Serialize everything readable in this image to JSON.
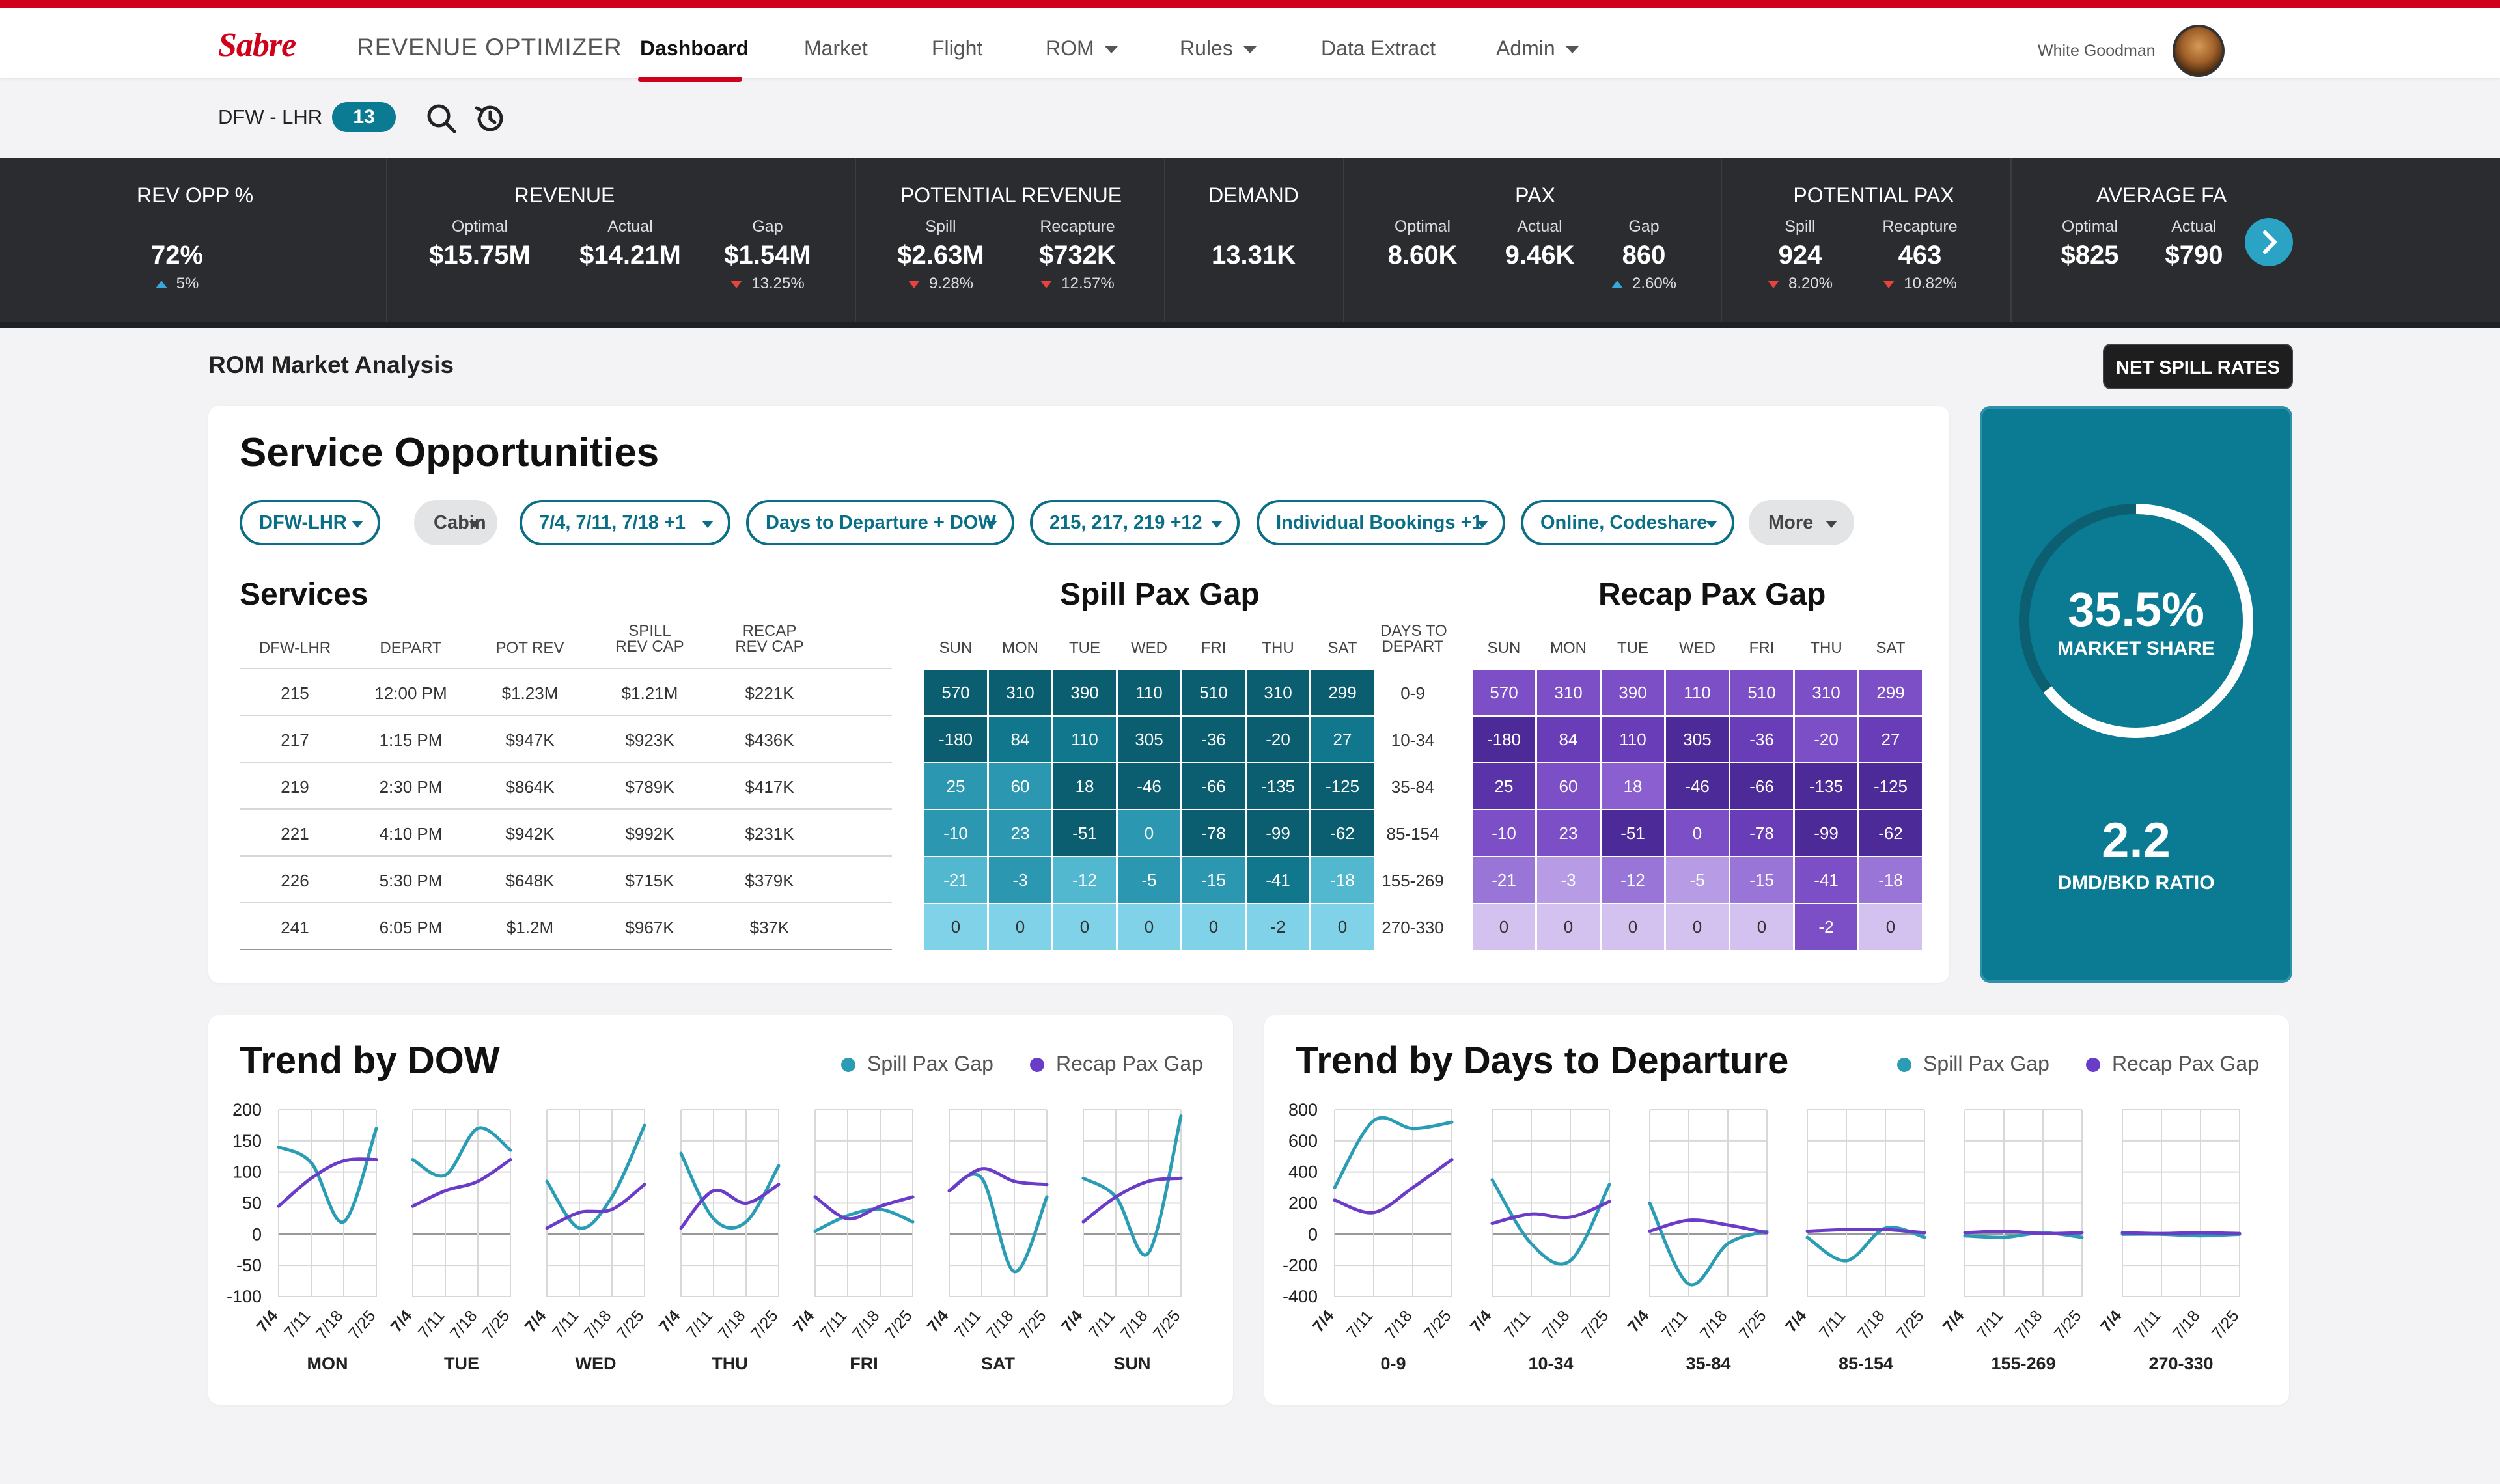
{
  "header": {
    "logo": "Sabre",
    "app_name": "REVENUE OPTIMIZER",
    "nav": [
      {
        "label": "Dashboard",
        "active": true,
        "dropdown": false
      },
      {
        "label": "Market",
        "dropdown": false
      },
      {
        "label": "Flight",
        "dropdown": false
      },
      {
        "label": "ROM",
        "dropdown": true
      },
      {
        "label": "Rules",
        "dropdown": true
      },
      {
        "label": "Data Extract",
        "dropdown": false
      },
      {
        "label": "Admin",
        "dropdown": true
      }
    ],
    "user_name": "White Goodman"
  },
  "subbar": {
    "route": "DFW - LHR",
    "count": "13",
    "icons": [
      "search-icon",
      "history-icon"
    ]
  },
  "kpis": [
    {
      "title": "REV OPP %",
      "items": [
        {
          "sub": "",
          "value": "72%",
          "delta": "5%",
          "dir": "up"
        }
      ]
    },
    {
      "title": "REVENUE",
      "items": [
        {
          "sub": "Optimal",
          "value": "$15.75M",
          "delta": "",
          "dir": ""
        },
        {
          "sub": "Actual",
          "value": "$14.21M",
          "delta": "",
          "dir": ""
        },
        {
          "sub": "Gap",
          "value": "$1.54M",
          "delta": "13.25%",
          "dir": "down"
        }
      ]
    },
    {
      "title": "POTENTIAL REVENUE",
      "items": [
        {
          "sub": "Spill",
          "value": "$2.63M",
          "delta": "9.28%",
          "dir": "down"
        },
        {
          "sub": "Recapture",
          "value": "$732K",
          "delta": "12.57%",
          "dir": "down"
        }
      ]
    },
    {
      "title": "DEMAND",
      "items": [
        {
          "sub": "",
          "value": "13.31K",
          "delta": "",
          "dir": ""
        }
      ]
    },
    {
      "title": "PAX",
      "items": [
        {
          "sub": "Optimal",
          "value": "8.60K",
          "delta": "",
          "dir": ""
        },
        {
          "sub": "Actual",
          "value": "9.46K",
          "delta": "",
          "dir": ""
        },
        {
          "sub": "Gap",
          "value": "860",
          "delta": "2.60%",
          "dir": "up"
        }
      ]
    },
    {
      "title": "POTENTIAL PAX",
      "items": [
        {
          "sub": "Spill",
          "value": "924",
          "delta": "8.20%",
          "dir": "down"
        },
        {
          "sub": "Recapture",
          "value": "463",
          "delta": "10.82%",
          "dir": "down"
        }
      ]
    },
    {
      "title": "AVERAGE FA",
      "items": [
        {
          "sub": "Optimal",
          "value": "$825",
          "delta": "",
          "dir": ""
        },
        {
          "sub": "Actual",
          "value": "$790",
          "delta": "",
          "dir": ""
        }
      ]
    }
  ],
  "section_title": "ROM Market Analysis",
  "net_spill_button": "NET SPILL RATES",
  "service": {
    "title": "Service Opportunities",
    "filters": [
      {
        "label": "DFW-LHR",
        "style": "outline"
      },
      {
        "label": "Cabin",
        "style": "grey"
      },
      {
        "label": "7/4, 7/11, 7/18 +1",
        "style": "outline"
      },
      {
        "label": "Days to Departure + DOW",
        "style": "outline"
      },
      {
        "label": "215, 217, 219 +12",
        "style": "outline"
      },
      {
        "label": "Individual Bookings +1",
        "style": "outline"
      },
      {
        "label": "Online, Codeshare",
        "style": "outline"
      },
      {
        "label": "More",
        "style": "grey"
      }
    ],
    "services_title": "Services",
    "services_headers": [
      "DFW-LHR",
      "DEPART",
      "POT REV",
      "SPILL\nREV CAP",
      "RECAP\nREV CAP"
    ],
    "services_rows": [
      [
        "215",
        "12:00 PM",
        "$1.23M",
        "$1.21M",
        "$221K"
      ],
      [
        "217",
        "1:15 PM",
        "$947K",
        "$923K",
        "$436K"
      ],
      [
        "219",
        "2:30 PM",
        "$864K",
        "$789K",
        "$417K"
      ],
      [
        "221",
        "4:10 PM",
        "$942K",
        "$992K",
        "$231K"
      ],
      [
        "226",
        "5:30 PM",
        "$648K",
        "$715K",
        "$379K"
      ],
      [
        "241",
        "6:05 PM",
        "$1.2M",
        "$967K",
        "$37K"
      ]
    ],
    "spill_title": "Spill Pax Gap",
    "recap_title": "Recap Pax Gap",
    "dow_headers": [
      "SUN",
      "MON",
      "TUE",
      "WED",
      "FRI",
      "THU",
      "SAT"
    ],
    "dtd_header": "DAYS TO\nDEPART",
    "dtd_labels": [
      "0-9",
      "10-34",
      "35-84",
      "85-154",
      "155-269",
      "270-330"
    ],
    "spill_grid": [
      [
        "570",
        "310",
        "390",
        "110",
        "510",
        "310",
        "299"
      ],
      [
        "-180",
        "84",
        "110",
        "305",
        "-36",
        "-20",
        "27"
      ],
      [
        "25",
        "60",
        "18",
        "-46",
        "-66",
        "-135",
        "-125"
      ],
      [
        "-10",
        "23",
        "-51",
        "0",
        "-78",
        "-99",
        "-62"
      ],
      [
        "-21",
        "-3",
        "-12",
        "-5",
        "-15",
        "-41",
        "-18"
      ],
      [
        "0",
        "0",
        "0",
        "0",
        "0",
        "-2",
        "0"
      ]
    ],
    "recap_grid": [
      [
        "570",
        "310",
        "390",
        "110",
        "510",
        "310",
        "299"
      ],
      [
        "-180",
        "84",
        "110",
        "305",
        "-36",
        "-20",
        "27"
      ],
      [
        "25",
        "60",
        "18",
        "-46",
        "-66",
        "-135",
        "-125"
      ],
      [
        "-10",
        "23",
        "-51",
        "0",
        "-78",
        "-99",
        "-62"
      ],
      [
        "-21",
        "-3",
        "-12",
        "-5",
        "-15",
        "-41",
        "-18"
      ],
      [
        "0",
        "0",
        "0",
        "0",
        "0",
        "-2",
        "0"
      ]
    ],
    "spill_colors": [
      [
        "#0b5e6f",
        "#0b5e6f",
        "#0b5e6f",
        "#0b5e6f",
        "#0b5e6f",
        "#0b5e6f",
        "#0b5e6f"
      ],
      [
        "#0b5e6f",
        "#11778c",
        "#11778c",
        "#0b5e6f",
        "#0b5e6f",
        "#0b5e6f",
        "#11778c"
      ],
      [
        "#2b97b1",
        "#2b97b1",
        "#0b5e6f",
        "#0b5e6f",
        "#0b5e6f",
        "#0b5e6f",
        "#0b5e6f"
      ],
      [
        "#2b97b1",
        "#2b97b1",
        "#0b5e6f",
        "#2b97b1",
        "#0b5e6f",
        "#0b5e6f",
        "#0b5e6f"
      ],
      [
        "#52b8d0",
        "#2b97b1",
        "#52b8d0",
        "#2b97b1",
        "#2b97b1",
        "#11778c",
        "#52b8d0"
      ],
      [
        "#7fd2e7",
        "#7fd2e7",
        "#7fd2e7",
        "#7fd2e7",
        "#7fd2e7",
        "#7fd2e7",
        "#7fd2e7"
      ]
    ],
    "recap_colors": [
      [
        "#7d4fc6",
        "#7d4fc6",
        "#7d4fc6",
        "#7d4fc6",
        "#7d4fc6",
        "#7d4fc6",
        "#7d4fc6"
      ],
      [
        "#4c2a98",
        "#6a3db8",
        "#6a3db8",
        "#4c2a98",
        "#6a3db8",
        "#7d4fc6",
        "#6a3db8"
      ],
      [
        "#5a33a8",
        "#7d4fc6",
        "#8b5fd0",
        "#4c2a98",
        "#4c2a98",
        "#4c2a98",
        "#4c2a98"
      ],
      [
        "#7d4fc6",
        "#7d4fc6",
        "#4c2a98",
        "#7d4fc6",
        "#6a3db8",
        "#4c2a98",
        "#4c2a98"
      ],
      [
        "#9a75d8",
        "#b79be4",
        "#9a75d8",
        "#b79be4",
        "#9a75d8",
        "#7d4fc6",
        "#9a75d8"
      ],
      [
        "#d3c2f0",
        "#d3c2f0",
        "#d3c2f0",
        "#d3c2f0",
        "#d3c2f0",
        "#7d4fc6",
        "#d3c2f0"
      ]
    ],
    "text_dark_rows": [
      5
    ]
  },
  "market": {
    "share": "35.5%",
    "share_label": "MARKET SHARE",
    "share_value": 0.355,
    "ratio": "2.2",
    "ratio_label": "DMD/BKD RATIO"
  },
  "colors": {
    "spill": "#2a9db5",
    "recap": "#6a3cc8",
    "accent": "#0a7b93",
    "brand": "#d0021b"
  },
  "chart_data": [
    {
      "type": "line",
      "title": "Trend by DOW",
      "legend": [
        "Spill Pax Gap",
        "Recap Pax Gap"
      ],
      "legend_position": "top-right",
      "ylim": [
        -100,
        200
      ],
      "yticks": [
        "200",
        "150",
        "100",
        "50",
        "0",
        "-50",
        "-100"
      ],
      "x": [
        "7/4",
        "7/11",
        "7/18",
        "7/25"
      ],
      "panels": [
        {
          "label": "MON",
          "spill": [
            140,
            115,
            20,
            170
          ],
          "recap": [
            45,
            90,
            118,
            120
          ]
        },
        {
          "label": "TUE",
          "spill": [
            120,
            95,
            170,
            135
          ],
          "recap": [
            45,
            70,
            85,
            120
          ]
        },
        {
          "label": "WED",
          "spill": [
            85,
            10,
            60,
            175
          ],
          "recap": [
            10,
            35,
            40,
            80
          ]
        },
        {
          "label": "THU",
          "spill": [
            130,
            25,
            20,
            110
          ],
          "recap": [
            10,
            70,
            50,
            80
          ]
        },
        {
          "label": "FRI",
          "spill": [
            5,
            30,
            40,
            20
          ],
          "recap": [
            60,
            25,
            45,
            60
          ]
        },
        {
          "label": "SAT",
          "spill": [
            70,
            90,
            -60,
            60
          ],
          "recap": [
            70,
            105,
            85,
            80
          ]
        },
        {
          "label": "SUN",
          "spill": [
            90,
            60,
            -30,
            190
          ],
          "recap": [
            20,
            60,
            85,
            90
          ]
        }
      ]
    },
    {
      "type": "line",
      "title": "Trend by Days to Departure",
      "legend": [
        "Spill Pax Gap",
        "Recap Pax Gap"
      ],
      "legend_position": "top-right",
      "ylim": [
        -400,
        800
      ],
      "yticks": [
        "800",
        "600",
        "400",
        "200",
        "0",
        "-200",
        "-400"
      ],
      "x": [
        "7/4",
        "7/11",
        "7/18",
        "7/25"
      ],
      "panels": [
        {
          "label": "0-9",
          "spill": [
            300,
            730,
            680,
            720
          ],
          "recap": [
            220,
            140,
            300,
            480
          ]
        },
        {
          "label": "10-34",
          "spill": [
            350,
            -60,
            -170,
            320
          ],
          "recap": [
            70,
            130,
            110,
            210
          ]
        },
        {
          "label": "35-84",
          "spill": [
            200,
            -320,
            -60,
            20
          ],
          "recap": [
            20,
            90,
            60,
            10
          ]
        },
        {
          "label": "85-154",
          "spill": [
            -20,
            -170,
            40,
            -20
          ],
          "recap": [
            20,
            30,
            30,
            10
          ]
        },
        {
          "label": "155-269",
          "spill": [
            -10,
            -20,
            10,
            -20
          ],
          "recap": [
            10,
            20,
            5,
            10
          ]
        },
        {
          "label": "270-330",
          "spill": [
            0,
            0,
            -10,
            0
          ],
          "recap": [
            10,
            5,
            10,
            5
          ]
        }
      ]
    }
  ]
}
